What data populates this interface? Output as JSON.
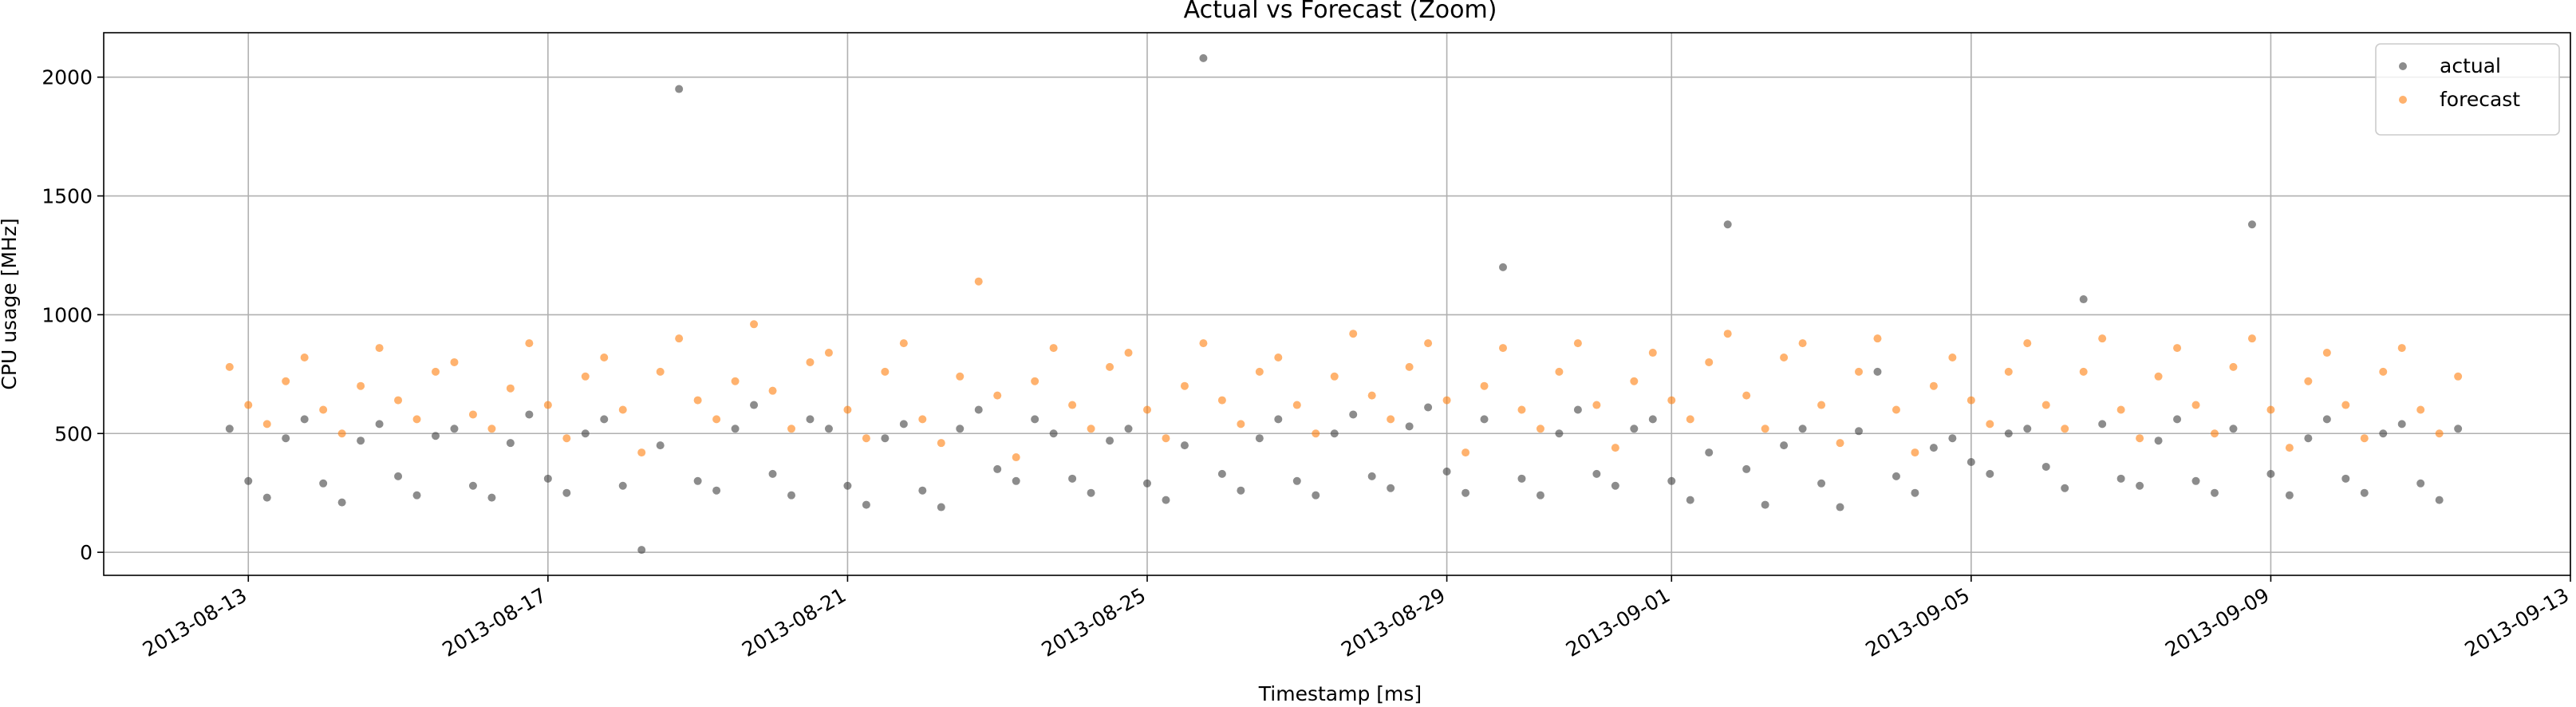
{
  "chart_data": {
    "type": "scatter",
    "title": "Actual vs Forecast (Zoom)",
    "x_label": "Timestamp [ms]",
    "y_label": "CPU usage [MHz]",
    "xlim": [
      "2013-08-11T01:40",
      "2013-09-13T00:00"
    ],
    "xticks": [
      "2013-08-13",
      "2013-08-17",
      "2013-08-21",
      "2013-08-25",
      "2013-08-29",
      "2013-09-01",
      "2013-09-05",
      "2013-09-09",
      "2013-09-13"
    ],
    "ylim": [
      -97,
      2187
    ],
    "yticks": [
      0,
      500,
      1000,
      1500,
      2000
    ],
    "grid": true,
    "legend": "upper right",
    "x": [
      "2013-08-12T18:00",
      "2013-08-13T00:00",
      "2013-08-13T06:00",
      "2013-08-13T12:00",
      "2013-08-13T18:00",
      "2013-08-14T00:00",
      "2013-08-14T06:00",
      "2013-08-14T12:00",
      "2013-08-14T18:00",
      "2013-08-15T00:00",
      "2013-08-15T06:00",
      "2013-08-15T12:00",
      "2013-08-15T18:00",
      "2013-08-16T00:00",
      "2013-08-16T06:00",
      "2013-08-16T12:00",
      "2013-08-16T18:00",
      "2013-08-17T00:00",
      "2013-08-17T06:00",
      "2013-08-17T12:00",
      "2013-08-17T18:00",
      "2013-08-18T00:00",
      "2013-08-18T06:00",
      "2013-08-18T12:00",
      "2013-08-18T18:00",
      "2013-08-19T00:00",
      "2013-08-19T06:00",
      "2013-08-19T12:00",
      "2013-08-19T18:00",
      "2013-08-20T00:00",
      "2013-08-20T06:00",
      "2013-08-20T12:00",
      "2013-08-20T18:00",
      "2013-08-21T00:00",
      "2013-08-21T06:00",
      "2013-08-21T12:00",
      "2013-08-21T18:00",
      "2013-08-22T00:00",
      "2013-08-22T06:00",
      "2013-08-22T12:00",
      "2013-08-22T18:00",
      "2013-08-23T00:00",
      "2013-08-23T06:00",
      "2013-08-23T12:00",
      "2013-08-23T18:00",
      "2013-08-24T00:00",
      "2013-08-24T06:00",
      "2013-08-24T12:00",
      "2013-08-24T18:00",
      "2013-08-25T00:00",
      "2013-08-25T06:00",
      "2013-08-25T12:00",
      "2013-08-25T18:00",
      "2013-08-26T00:00",
      "2013-08-26T06:00",
      "2013-08-26T12:00",
      "2013-08-26T18:00",
      "2013-08-27T00:00",
      "2013-08-27T06:00",
      "2013-08-27T12:00",
      "2013-08-27T18:00",
      "2013-08-28T00:00",
      "2013-08-28T06:00",
      "2013-08-28T12:00",
      "2013-08-28T18:00",
      "2013-08-29T00:00",
      "2013-08-29T06:00",
      "2013-08-29T12:00",
      "2013-08-29T18:00",
      "2013-08-30T00:00",
      "2013-08-30T06:00",
      "2013-08-30T12:00",
      "2013-08-30T18:00",
      "2013-08-31T00:00",
      "2013-08-31T06:00",
      "2013-08-31T12:00",
      "2013-08-31T18:00",
      "2013-09-01T00:00",
      "2013-09-01T06:00",
      "2013-09-01T12:00",
      "2013-09-01T18:00",
      "2013-09-02T00:00",
      "2013-09-02T06:00",
      "2013-09-02T12:00",
      "2013-09-02T18:00",
      "2013-09-03T00:00",
      "2013-09-03T06:00",
      "2013-09-03T12:00",
      "2013-09-03T18:00",
      "2013-09-04T00:00",
      "2013-09-04T06:00",
      "2013-09-04T12:00",
      "2013-09-04T18:00",
      "2013-09-05T00:00",
      "2013-09-05T06:00",
      "2013-09-05T12:00",
      "2013-09-05T18:00",
      "2013-09-06T00:00",
      "2013-09-06T06:00",
      "2013-09-06T12:00",
      "2013-09-06T18:00",
      "2013-09-07T00:00",
      "2013-09-07T06:00",
      "2013-09-07T12:00",
      "2013-09-07T18:00",
      "2013-09-08T00:00",
      "2013-09-08T06:00",
      "2013-09-08T12:00",
      "2013-09-08T18:00",
      "2013-09-09T00:00",
      "2013-09-09T06:00",
      "2013-09-09T12:00",
      "2013-09-09T18:00",
      "2013-09-10T00:00",
      "2013-09-10T06:00",
      "2013-09-10T12:00",
      "2013-09-10T18:00",
      "2013-09-11T00:00",
      "2013-09-11T06:00",
      "2013-09-11T12:00"
    ],
    "series": [
      {
        "name": "actual",
        "color": "#404040",
        "values": [
          520,
          300,
          230,
          480,
          560,
          290,
          210,
          470,
          540,
          320,
          240,
          490,
          520,
          280,
          230,
          460,
          580,
          310,
          250,
          500,
          560,
          280,
          10,
          450,
          1950,
          300,
          260,
          520,
          620,
          330,
          240,
          560,
          520,
          280,
          200,
          480,
          540,
          260,
          190,
          520,
          600,
          350,
          300,
          560,
          500,
          310,
          250,
          470,
          520,
          290,
          220,
          450,
          2080,
          330,
          260,
          480,
          560,
          300,
          240,
          500,
          580,
          320,
          270,
          530,
          610,
          340,
          250,
          560,
          1200,
          310,
          240,
          500,
          600,
          330,
          280,
          520,
          560,
          300,
          220,
          420,
          1380,
          350,
          200,
          450,
          520,
          290,
          190,
          510,
          760,
          320,
          250,
          440,
          480,
          380,
          330,
          500,
          520,
          360,
          270,
          1065,
          540,
          310,
          280,
          470,
          560,
          300,
          250,
          520,
          1380,
          330,
          240,
          480,
          560,
          310,
          250,
          500,
          540,
          290,
          220,
          520
        ]
      },
      {
        "name": "forecast",
        "color": "#ff7f0e",
        "values": [
          780,
          620,
          540,
          720,
          820,
          600,
          500,
          700,
          860,
          640,
          560,
          760,
          800,
          580,
          520,
          690,
          880,
          620,
          480,
          740,
          820,
          600,
          420,
          760,
          900,
          640,
          560,
          720,
          960,
          680,
          520,
          800,
          840,
          600,
          480,
          760,
          880,
          560,
          460,
          740,
          1140,
          660,
          400,
          720,
          860,
          620,
          520,
          780,
          840,
          600,
          480,
          700,
          880,
          640,
          540,
          760,
          820,
          620,
          500,
          740,
          920,
          660,
          560,
          780,
          880,
          640,
          420,
          700,
          860,
          600,
          520,
          760,
          880,
          620,
          440,
          720,
          840,
          640,
          560,
          800,
          920,
          660,
          520,
          820,
          880,
          620,
          460,
          760,
          900,
          600,
          420,
          700,
          820,
          640,
          540,
          760,
          880,
          620,
          520,
          760,
          900,
          600,
          480,
          740,
          860,
          620,
          500,
          780,
          900,
          600,
          440,
          720,
          840,
          620,
          480,
          760,
          860,
          600,
          500,
          740
        ]
      }
    ]
  }
}
